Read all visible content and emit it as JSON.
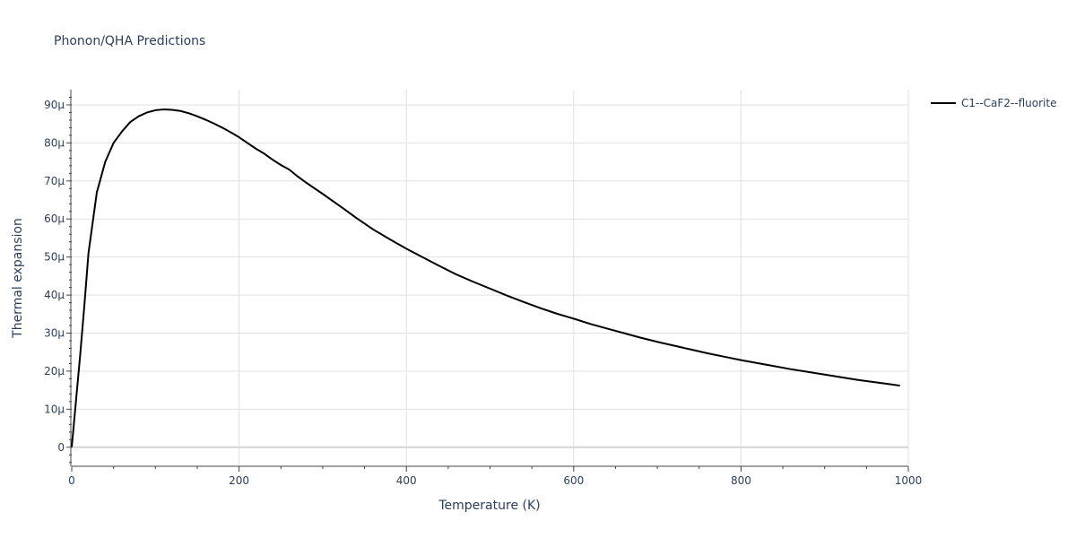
{
  "chart_data": {
    "type": "line",
    "title": "Phonon/QHA Predictions",
    "xlabel": "Temperature (K)",
    "ylabel": "Thermal expansion",
    "xlim": [
      0,
      1000
    ],
    "ylim": [
      -5,
      94
    ],
    "x_ticks": [
      0,
      200,
      400,
      600,
      800,
      1000
    ],
    "x_tick_labels": [
      "0",
      "200",
      "400",
      "600",
      "800",
      "1000"
    ],
    "y_ticks": [
      0,
      10,
      20,
      30,
      40,
      50,
      60,
      70,
      80,
      90
    ],
    "y_tick_labels": [
      "0",
      "10μ",
      "20μ",
      "30μ",
      "40μ",
      "50μ",
      "60μ",
      "70μ",
      "80μ",
      "90μ"
    ],
    "y_unit_note": "values in units of 1e-6 (μ)",
    "grid": true,
    "legend_position": "top-right",
    "series": [
      {
        "name": "C1--CaF2--fluorite",
        "color": "#000000",
        "x": [
          0,
          5,
          10,
          15,
          20,
          30,
          40,
          50,
          60,
          70,
          80,
          90,
          100,
          110,
          120,
          130,
          140,
          150,
          160,
          170,
          180,
          190,
          200,
          210,
          220,
          230,
          240,
          250,
          260,
          270,
          280,
          300,
          320,
          340,
          360,
          380,
          400,
          420,
          440,
          460,
          480,
          500,
          520,
          540,
          560,
          580,
          600,
          620,
          640,
          660,
          680,
          700,
          720,
          740,
          760,
          780,
          800,
          820,
          840,
          860,
          880,
          900,
          920,
          940,
          960,
          980,
          990
        ],
        "y": [
          0,
          12,
          24,
          37,
          51,
          67,
          75,
          80,
          83,
          85.5,
          87,
          88,
          88.6,
          88.8,
          88.7,
          88.4,
          87.8,
          87,
          86.1,
          85.1,
          84,
          82.8,
          81.5,
          80,
          78.5,
          77.2,
          75.6,
          74.2,
          73,
          71.2,
          69.6,
          66.6,
          63.5,
          60.3,
          57.3,
          54.7,
          52.2,
          49.9,
          47.6,
          45.4,
          43.5,
          41.7,
          39.9,
          38.2,
          36.6,
          35.1,
          33.8,
          32.4,
          31.2,
          30,
          28.8,
          27.7,
          26.7,
          25.7,
          24.7,
          23.8,
          22.9,
          22.1,
          21.3,
          20.5,
          19.8,
          19.1,
          18.4,
          17.7,
          17.1,
          16.5,
          16.2
        ]
      }
    ]
  }
}
